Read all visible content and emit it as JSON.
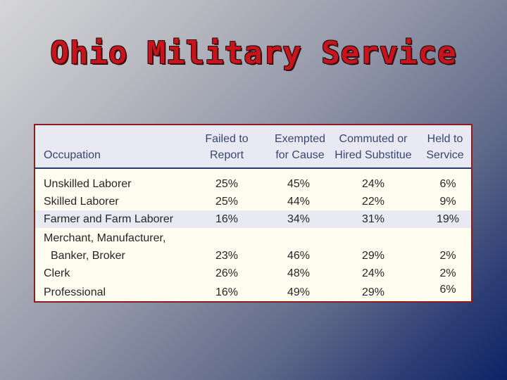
{
  "slide": {
    "title": "Ohio Military Service"
  },
  "table": {
    "headers": {
      "occupation": "Occupation",
      "failed_1": "Failed to",
      "failed_2": "Report",
      "exempted_1": "Exempted",
      "exempted_2": "for Cause",
      "commuted_1": "Commuted or",
      "commuted_2": "Hired Substitue",
      "held_1": "Held to",
      "held_2": "Service"
    },
    "rows": [
      {
        "occupation": "Unskilled Laborer",
        "failed": "25%",
        "exempted": "45%",
        "commuted": "24%",
        "held": "6%"
      },
      {
        "occupation": "Skilled Laborer",
        "failed": "25%",
        "exempted": "44%",
        "commuted": "22%",
        "held": "9%"
      },
      {
        "occupation": "Farmer and Farm Laborer",
        "failed": "16%",
        "exempted": "34%",
        "commuted": "31%",
        "held": "19%"
      },
      {
        "occupation_1": "Merchant, Manufacturer,",
        "occupation": "Banker, Broker",
        "failed": "23%",
        "exempted": "46%",
        "commuted": "29%",
        "held": "2%"
      },
      {
        "occupation": "Clerk",
        "failed": "26%",
        "exempted": "48%",
        "commuted": "24%",
        "held": "2%"
      },
      {
        "occupation": "Professional",
        "failed": "16%",
        "exempted": "49%",
        "commuted": "29%",
        "held": "6%"
      }
    ],
    "colors": {
      "title": "#c8141c",
      "frame_border": "#8a1c22",
      "header_bg": "#e9e9f4",
      "header_text": "#3a4670",
      "body_bg": "#fffdf0",
      "highlight_row": "#e9e9f4"
    }
  }
}
